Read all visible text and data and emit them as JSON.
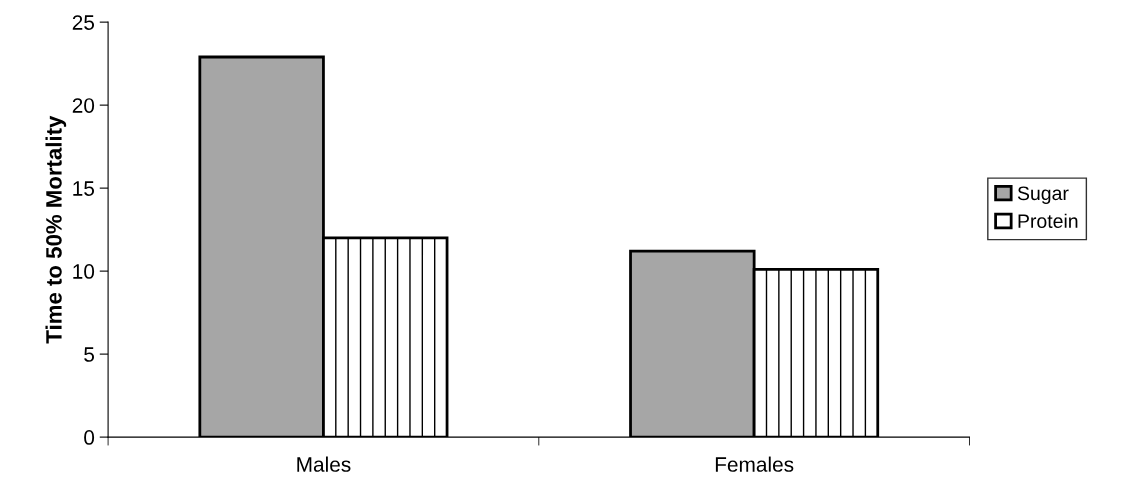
{
  "chart_data": {
    "type": "bar",
    "ylabel": "Time to 50% Mortality",
    "categories": [
      "Males",
      "Females"
    ],
    "series": [
      {
        "name": "Sugar",
        "color": "#a6a6a6",
        "values": [
          22.9,
          11.2
        ]
      },
      {
        "name": "Protein",
        "color": "#ffffff",
        "values": [
          12.0,
          10.1
        ]
      }
    ],
    "ylim": [
      0,
      25
    ],
    "yticks": [
      0,
      5,
      10,
      15,
      20,
      25
    ],
    "grid": false,
    "legend": "right"
  }
}
